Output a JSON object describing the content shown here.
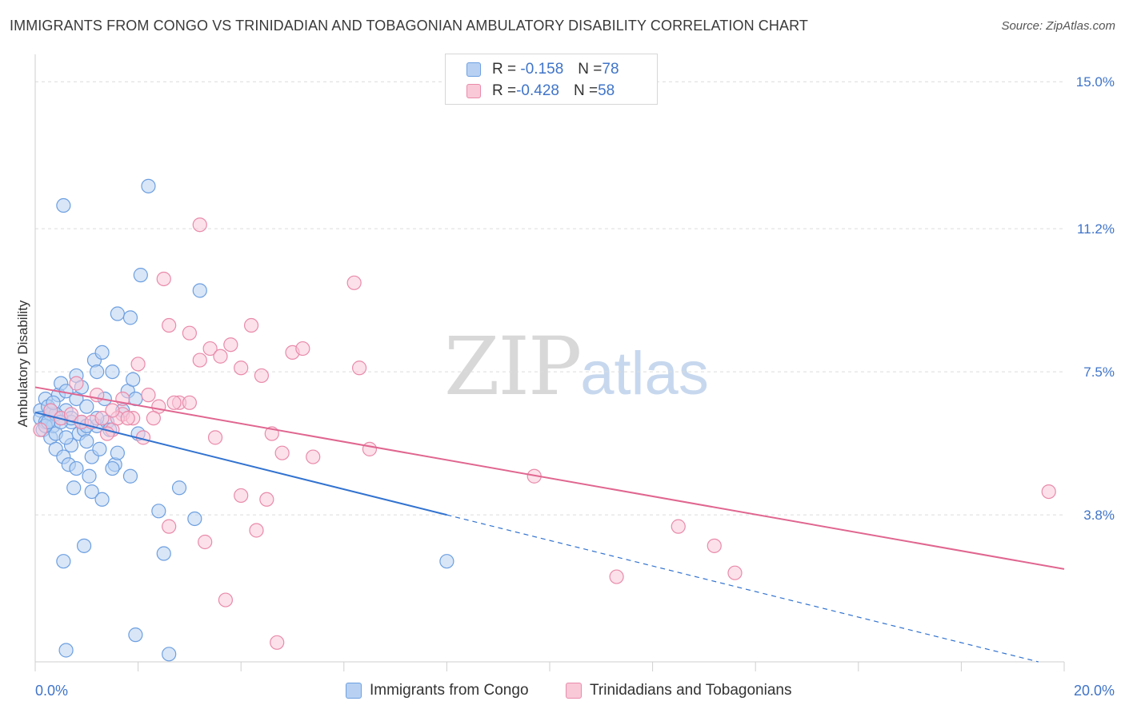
{
  "title": "IMMIGRANTS FROM CONGO VS TRINIDADIAN AND TOBAGONIAN AMBULATORY DISABILITY CORRELATION CHART",
  "source": "Source: ZipAtlas.com",
  "watermark": {
    "zip": "ZIP",
    "atlas": "atlas"
  },
  "legend": {
    "rows": [
      {
        "r_label": "R = ",
        "r_value": "-0.158",
        "n_label": "N = ",
        "n_value": "78"
      },
      {
        "r_label": "R = ",
        "r_value": "-0.428",
        "n_label": "N = ",
        "n_value": "58"
      }
    ]
  },
  "bottom_legend": [
    "Immigrants from Congo",
    "Trinidadians and Tobagonians"
  ],
  "colors": {
    "blue": "#6d9fe0",
    "blue_fill": "#b8d1f3",
    "blue_line": "#3273d0",
    "pink": "#e98aaa",
    "pink_fill": "#f9c9d8",
    "pink_line": "#e06690",
    "axis_text": "#3f74c8"
  },
  "chart_data": {
    "type": "scatter",
    "title": "IMMIGRANTS FROM CONGO VS TRINIDADIAN AND TOBAGONIAN AMBULATORY DISABILITY CORRELATION CHART",
    "xlabel": "",
    "ylabel": "Ambulatory Disability",
    "xlim": [
      0,
      20
    ],
    "ylim": [
      0,
      15.5
    ],
    "x_tick_labels": [
      "0.0%",
      "20.0%"
    ],
    "y_ticks": [
      3.8,
      7.5,
      11.2,
      15.0
    ],
    "y_tick_labels": [
      "3.8%",
      "7.5%",
      "11.2%",
      "15.0%"
    ],
    "grid": true,
    "series": [
      {
        "name": "Immigrants from Congo",
        "points": [
          [
            0.1,
            6.5
          ],
          [
            0.1,
            6.3
          ],
          [
            0.15,
            6.0
          ],
          [
            0.2,
            6.8
          ],
          [
            0.2,
            6.2
          ],
          [
            0.25,
            6.6
          ],
          [
            0.3,
            5.8
          ],
          [
            0.3,
            6.4
          ],
          [
            0.35,
            6.1
          ],
          [
            0.4,
            5.5
          ],
          [
            0.4,
            5.9
          ],
          [
            0.45,
            6.9
          ],
          [
            0.5,
            7.2
          ],
          [
            0.5,
            6.3
          ],
          [
            0.55,
            5.3
          ],
          [
            0.6,
            6.5
          ],
          [
            0.6,
            7.0
          ],
          [
            0.65,
            5.1
          ],
          [
            0.7,
            6.2
          ],
          [
            0.7,
            5.6
          ],
          [
            0.75,
            4.5
          ],
          [
            0.8,
            7.4
          ],
          [
            0.8,
            6.8
          ],
          [
            0.85,
            5.9
          ],
          [
            0.9,
            7.1
          ],
          [
            0.95,
            6.0
          ],
          [
            1.0,
            5.7
          ],
          [
            1.0,
            6.6
          ],
          [
            1.05,
            4.8
          ],
          [
            1.1,
            4.4
          ],
          [
            1.1,
            5.3
          ],
          [
            1.15,
            7.8
          ],
          [
            1.2,
            6.1
          ],
          [
            1.2,
            7.5
          ],
          [
            1.25,
            5.5
          ],
          [
            1.3,
            8.0
          ],
          [
            1.35,
            6.8
          ],
          [
            1.4,
            6.2
          ],
          [
            1.45,
            6.0
          ],
          [
            1.5,
            7.5
          ],
          [
            1.55,
            5.1
          ],
          [
            1.6,
            9.0
          ],
          [
            1.6,
            5.4
          ],
          [
            1.7,
            6.5
          ],
          [
            1.8,
            7.0
          ],
          [
            1.85,
            8.9
          ],
          [
            1.9,
            7.3
          ],
          [
            1.95,
            6.8
          ],
          [
            2.0,
            5.9
          ],
          [
            2.05,
            10.0
          ],
          [
            0.55,
            11.8
          ],
          [
            1.85,
            4.8
          ],
          [
            2.2,
            12.3
          ],
          [
            2.4,
            3.9
          ],
          [
            2.8,
            4.5
          ],
          [
            3.2,
            9.6
          ],
          [
            3.1,
            3.7
          ],
          [
            2.5,
            2.8
          ],
          [
            2.6,
            0.2
          ],
          [
            1.95,
            0.7
          ],
          [
            0.95,
            3.0
          ],
          [
            0.55,
            2.6
          ],
          [
            0.6,
            0.3
          ],
          [
            8.0,
            2.6
          ],
          [
            0.4,
            6.4
          ],
          [
            0.5,
            6.2
          ],
          [
            0.7,
            6.3
          ],
          [
            0.9,
            6.2
          ],
          [
            1.0,
            6.1
          ],
          [
            1.2,
            6.3
          ],
          [
            0.3,
            6.5
          ],
          [
            0.2,
            6.1
          ],
          [
            0.6,
            5.8
          ],
          [
            0.8,
            5.0
          ],
          [
            1.3,
            4.2
          ],
          [
            1.5,
            5.0
          ],
          [
            0.35,
            6.7
          ],
          [
            0.25,
            6.2
          ]
        ],
        "trend": {
          "x": [
            0,
            8.0
          ],
          "y": [
            6.45,
            3.8
          ]
        },
        "trend_dashed": {
          "x": [
            8.0,
            19.5
          ],
          "y": [
            3.8,
            0.0
          ]
        }
      },
      {
        "name": "Trinidadians and Tobagonians",
        "points": [
          [
            0.1,
            6.0
          ],
          [
            0.3,
            6.5
          ],
          [
            0.5,
            6.3
          ],
          [
            0.7,
            6.4
          ],
          [
            0.9,
            6.2
          ],
          [
            1.1,
            6.2
          ],
          [
            1.3,
            6.3
          ],
          [
            1.5,
            6.0
          ],
          [
            1.7,
            6.4
          ],
          [
            1.9,
            6.3
          ],
          [
            0.8,
            7.2
          ],
          [
            1.2,
            6.9
          ],
          [
            1.6,
            6.3
          ],
          [
            2.0,
            7.7
          ],
          [
            2.2,
            6.9
          ],
          [
            2.4,
            6.6
          ],
          [
            2.6,
            8.7
          ],
          [
            2.8,
            6.7
          ],
          [
            3.0,
            8.5
          ],
          [
            3.2,
            7.8
          ],
          [
            3.4,
            8.1
          ],
          [
            3.6,
            7.9
          ],
          [
            3.8,
            8.2
          ],
          [
            4.0,
            7.6
          ],
          [
            4.2,
            8.7
          ],
          [
            4.4,
            7.4
          ],
          [
            4.6,
            5.9
          ],
          [
            4.8,
            5.4
          ],
          [
            5.0,
            8.0
          ],
          [
            5.2,
            8.1
          ],
          [
            5.4,
            5.3
          ],
          [
            6.2,
            9.8
          ],
          [
            6.3,
            7.6
          ],
          [
            6.5,
            5.5
          ],
          [
            9.7,
            4.8
          ],
          [
            12.5,
            3.5
          ],
          [
            13.2,
            3.0
          ],
          [
            13.6,
            2.3
          ],
          [
            11.3,
            2.2
          ],
          [
            19.7,
            4.4
          ],
          [
            3.2,
            11.3
          ],
          [
            2.5,
            9.9
          ],
          [
            1.7,
            6.8
          ],
          [
            2.3,
            6.3
          ],
          [
            2.7,
            6.7
          ],
          [
            3.0,
            6.7
          ],
          [
            3.5,
            5.8
          ],
          [
            4.0,
            4.3
          ],
          [
            4.5,
            4.2
          ],
          [
            4.3,
            3.4
          ],
          [
            3.3,
            3.1
          ],
          [
            2.6,
            3.5
          ],
          [
            3.7,
            1.6
          ],
          [
            4.7,
            0.5
          ],
          [
            1.5,
            6.5
          ],
          [
            1.8,
            6.3
          ],
          [
            2.1,
            5.8
          ],
          [
            1.4,
            5.9
          ]
        ],
        "trend": {
          "x": [
            0,
            20.0
          ],
          "y": [
            7.1,
            2.4
          ]
        }
      }
    ]
  }
}
